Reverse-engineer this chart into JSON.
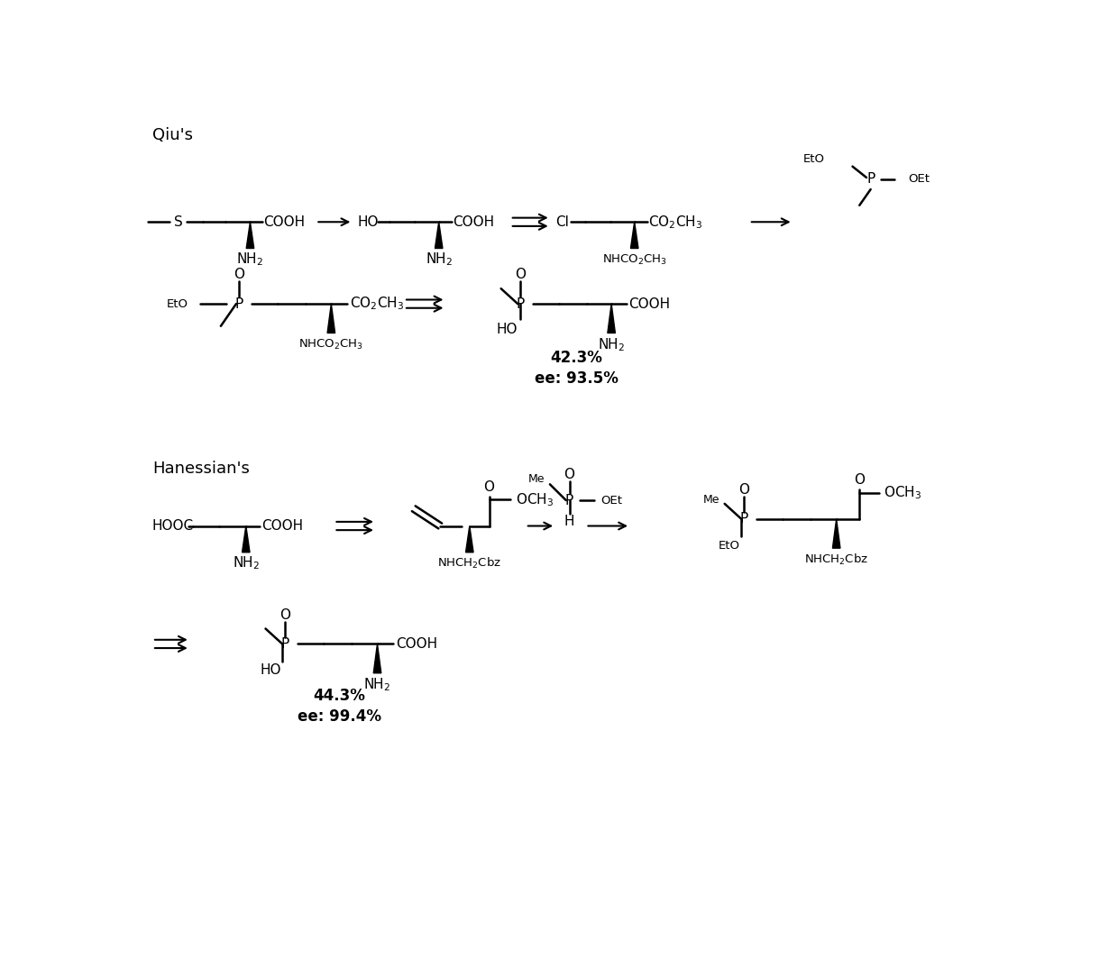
{
  "title_qiu": "Qiu's",
  "title_hanessian": "Hanessian's",
  "bg_color": "#ffffff",
  "text_color": "#000000",
  "qiu_yield": "42.3%",
  "qiu_ee": "ee: 93.5%",
  "han_yield": "44.3%",
  "han_ee": "ee: 99.4%",
  "figsize": [
    12.4,
    10.64
  ],
  "dpi": 100
}
